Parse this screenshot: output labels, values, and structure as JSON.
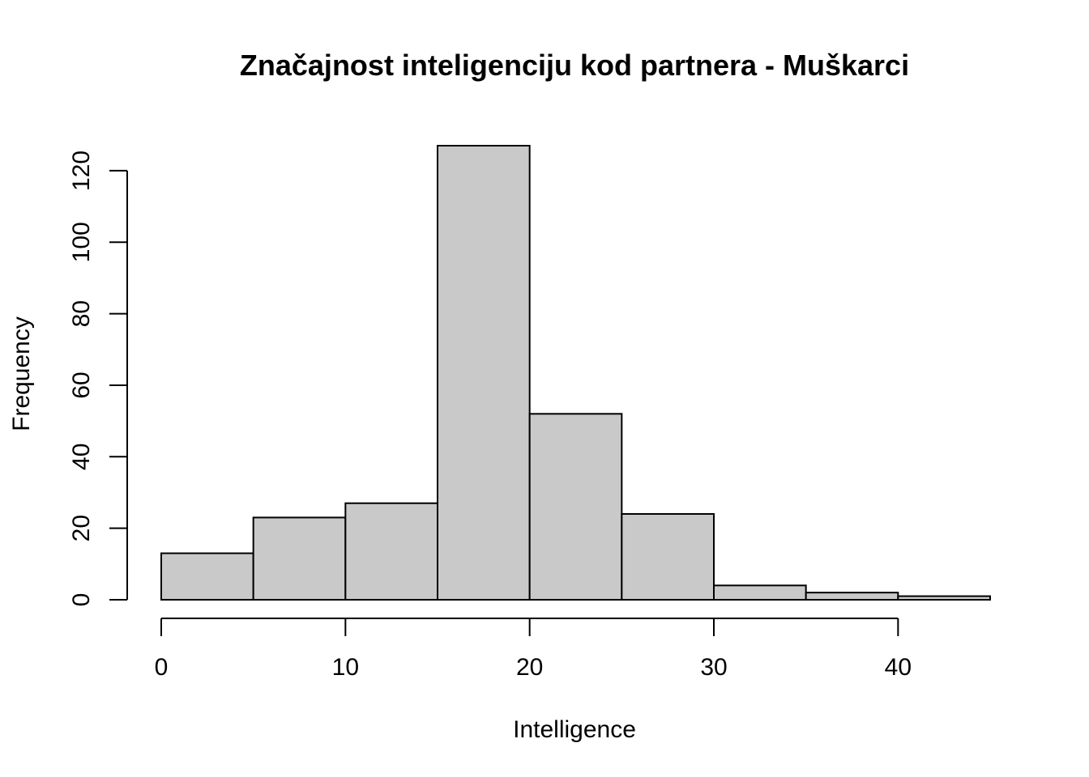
{
  "chart_data": {
    "type": "bar",
    "subtype": "histogram",
    "title": "Značajnost inteligenciju kod partnera - Muškarci",
    "xlabel": "Intelligence",
    "ylabel": "Frequency",
    "bins": [
      {
        "from": 0,
        "to": 5,
        "count": 13
      },
      {
        "from": 5,
        "to": 10,
        "count": 23
      },
      {
        "from": 10,
        "to": 15,
        "count": 27
      },
      {
        "from": 15,
        "to": 20,
        "count": 127
      },
      {
        "from": 20,
        "to": 25,
        "count": 52
      },
      {
        "from": 25,
        "to": 30,
        "count": 24
      },
      {
        "from": 30,
        "to": 35,
        "count": 4
      },
      {
        "from": 35,
        "to": 40,
        "count": 2
      },
      {
        "from": 40,
        "to": 45,
        "count": 1
      }
    ],
    "xlim": [
      0,
      45
    ],
    "ylim": [
      0,
      127
    ],
    "x_ticks": [
      0,
      10,
      20,
      30,
      40
    ],
    "y_ticks": [
      0,
      20,
      40,
      60,
      80,
      100,
      120
    ],
    "bar_color": "#c9c9c9",
    "edge_color": "#000000",
    "grid": false,
    "legend": "none"
  }
}
